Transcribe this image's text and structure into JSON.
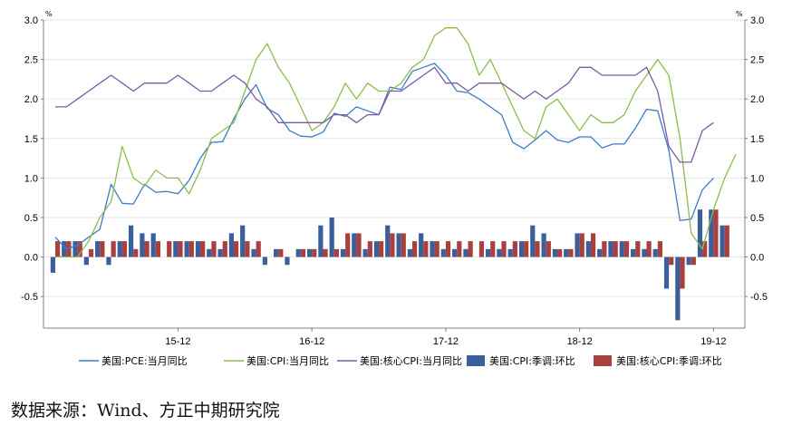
{
  "chart_data": {
    "type": "line",
    "title": "",
    "y_unit_left": "%",
    "y_unit_right": "%",
    "ylim": [
      -0.9,
      3.0
    ],
    "yticks": [
      "3.0",
      "2.5",
      "2.0",
      "1.5",
      "1.0",
      "0.5",
      "0.0",
      "-0.5"
    ],
    "yticks_values": [
      3.0,
      2.5,
      2.0,
      1.5,
      1.0,
      0.5,
      0.0,
      -0.5
    ],
    "x_tick_labels": [
      "15-12",
      "16-12",
      "17-12",
      "18-12",
      "19-12"
    ],
    "x_tick_months": [
      11,
      23,
      35,
      47,
      59
    ],
    "month_range": [
      0,
      61
    ],
    "x_start": "2015-01",
    "grid": true,
    "legend_position": "bottom",
    "colors": {
      "pce": "#3b7cc5",
      "cpi": "#8bbd4c",
      "core_cpi": "#7e59a4",
      "cpi_mom": "#3a5f9a",
      "core_mom": "#a8403e",
      "grid": "#e6e6e6",
      "axis": "#808080"
    },
    "series": [
      {
        "name": "美国:PCE:当月同比",
        "type": "line",
        "color_key": "pce",
        "values": [
          0.25,
          0.1,
          0.15,
          0.25,
          0.35,
          0.92,
          0.68,
          0.67,
          0.92,
          0.82,
          0.83,
          0.8,
          0.97,
          1.25,
          1.45,
          1.46,
          1.75,
          2.0,
          2.18,
          1.88,
          1.8,
          1.6,
          1.53,
          1.52,
          1.58,
          1.82,
          1.78,
          1.9,
          1.85,
          1.8,
          2.15,
          2.12,
          2.35,
          2.4,
          2.45,
          2.3,
          2.1,
          2.08,
          2.0,
          1.9,
          1.8,
          1.45,
          1.37,
          1.48,
          1.6,
          1.48,
          1.45,
          1.52,
          1.52,
          1.38,
          1.43,
          1.43,
          1.63,
          1.87,
          1.85,
          1.35,
          0.46,
          0.48,
          0.85,
          1.0
        ]
      },
      {
        "name": "美国:CPI:当月同比",
        "type": "line",
        "color_key": "cpi",
        "values": [
          0.0,
          0.0,
          0.0,
          0.2,
          0.5,
          0.7,
          1.4,
          1.0,
          0.9,
          1.1,
          1.0,
          1.0,
          0.8,
          1.1,
          1.5,
          1.6,
          1.7,
          2.1,
          2.5,
          2.7,
          2.4,
          2.2,
          1.9,
          1.6,
          1.7,
          1.9,
          2.2,
          2.0,
          2.2,
          2.1,
          2.1,
          2.2,
          2.4,
          2.5,
          2.8,
          2.9,
          2.9,
          2.7,
          2.3,
          2.5,
          2.2,
          1.9,
          1.6,
          1.5,
          1.9,
          2.0,
          1.8,
          1.6,
          1.8,
          1.7,
          1.7,
          1.8,
          2.1,
          2.3,
          2.5,
          2.3,
          1.5,
          0.3,
          0.1,
          0.6,
          1.0,
          1.3
        ]
      },
      {
        "name": "美国:核心CPI:当月同比",
        "type": "line",
        "color_key": "core_cpi",
        "values": [
          1.9,
          1.9,
          2.0,
          2.1,
          2.2,
          2.3,
          2.2,
          2.1,
          2.2,
          2.2,
          2.2,
          2.3,
          2.2,
          2.1,
          2.1,
          2.2,
          2.3,
          2.2,
          2.0,
          1.9,
          1.7,
          1.7,
          1.7,
          1.7,
          1.7,
          1.8,
          1.8,
          1.7,
          1.8,
          1.8,
          2.1,
          2.1,
          2.2,
          2.3,
          2.4,
          2.2,
          2.2,
          2.1,
          2.2,
          2.2,
          2.2,
          2.1,
          2.0,
          2.1,
          2.0,
          2.1,
          2.2,
          2.4,
          2.4,
          2.3,
          2.3,
          2.3,
          2.3,
          2.4,
          2.1,
          1.4,
          1.2,
          1.2,
          1.6,
          1.7
        ]
      },
      {
        "name": "美国:CPI:季调:环比",
        "type": "bar",
        "color_key": "cpi_mom",
        "start_month": 0,
        "values": [
          -0.2,
          0.2,
          0.2,
          -0.1,
          0.2,
          -0.1,
          0.2,
          0.4,
          0.3,
          0.3,
          0.0,
          0.2,
          0.2,
          0.2,
          0.1,
          0.1,
          0.3,
          0.4,
          0.1,
          -0.1,
          0.1,
          -0.1,
          0.1,
          0.1,
          0.4,
          0.5,
          0.1,
          0.3,
          0.1,
          0.2,
          0.4,
          0.3,
          0.1,
          0.3,
          0.2,
          0.1,
          0.1,
          0.1,
          0.0,
          0.1,
          0.1,
          0.1,
          0.2,
          0.4,
          0.3,
          0.1,
          0.1,
          0.3,
          0.2,
          0.1,
          0.2,
          0.2,
          0.1,
          0.1,
          0.1,
          -0.4,
          -0.8,
          -0.1,
          0.6,
          0.6,
          0.4
        ]
      },
      {
        "name": "美国:核心CPI:季调:环比",
        "type": "bar",
        "color_key": "core_mom",
        "start_month": 0,
        "values": [
          0.2,
          0.2,
          0.2,
          0.1,
          0.2,
          0.2,
          0.2,
          0.1,
          0.2,
          0.2,
          0.2,
          0.2,
          0.2,
          0.2,
          0.2,
          0.2,
          0.2,
          0.2,
          0.2,
          0.0,
          0.1,
          0.0,
          0.1,
          0.1,
          0.1,
          0.1,
          0.3,
          0.3,
          0.2,
          0.2,
          0.3,
          0.3,
          0.2,
          0.2,
          0.2,
          0.2,
          0.2,
          0.2,
          0.2,
          0.2,
          0.2,
          0.2,
          0.2,
          0.2,
          0.2,
          0.1,
          0.1,
          0.3,
          0.3,
          0.2,
          0.2,
          0.2,
          0.2,
          0.2,
          0.2,
          -0.1,
          -0.4,
          -0.1,
          0.2,
          0.6,
          0.4
        ]
      }
    ]
  },
  "source_note": "数据来源：Wind、方正中期研究院"
}
